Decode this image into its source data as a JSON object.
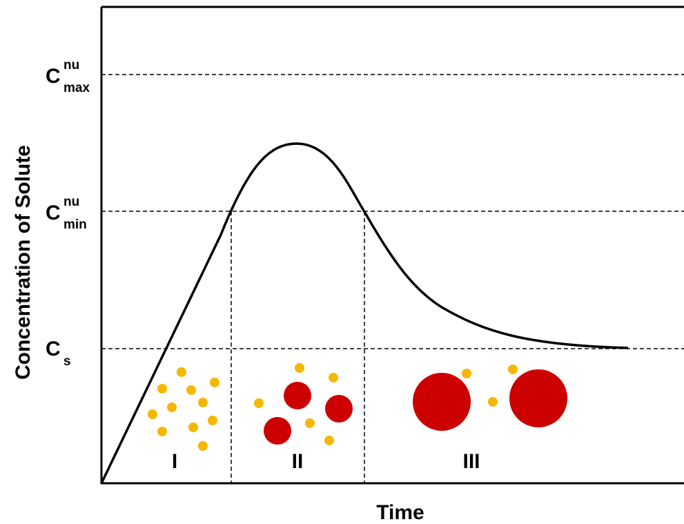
{
  "axes": {
    "x_label": "Time",
    "y_label": "Concentration of Solute"
  },
  "levels": [
    {
      "base": "C",
      "sup": "nu",
      "sub": "max"
    },
    {
      "base": "C",
      "sup": "nu",
      "sub": "min"
    },
    {
      "base": "C",
      "sub": "s"
    }
  ],
  "stages": [
    "I",
    "II",
    "III"
  ]
}
